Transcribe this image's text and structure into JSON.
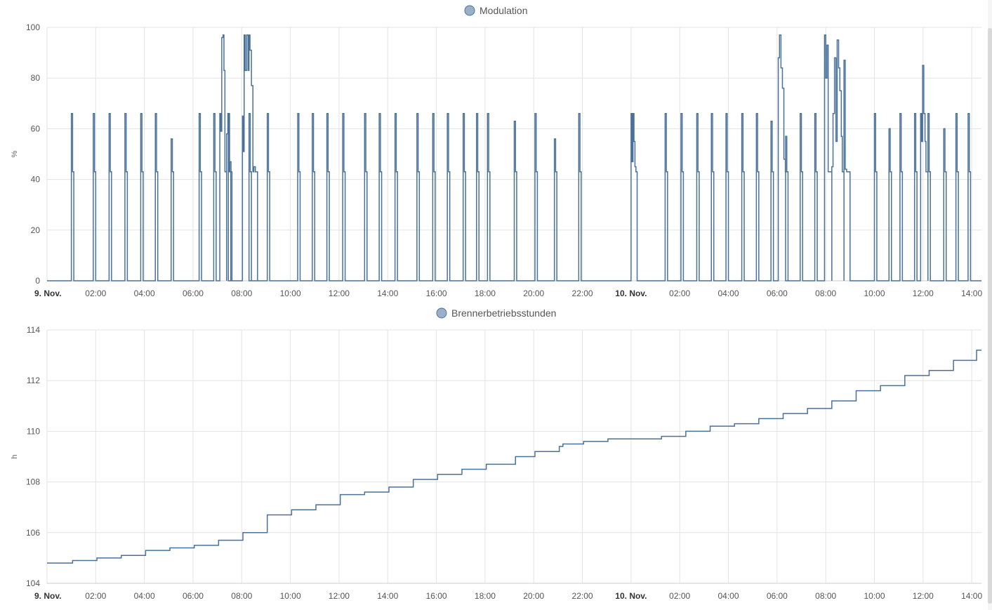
{
  "chart_data": [
    {
      "type": "line",
      "step": true,
      "legend": "Modulation",
      "legend_position": "top-center",
      "ylabel": "%",
      "ylim": [
        0,
        100
      ],
      "yticks": [
        "0",
        "20",
        "40",
        "60",
        "80",
        "100"
      ],
      "grid": true,
      "xlim_hours": [
        0,
        38.4
      ],
      "xticks": [
        {
          "h": 0,
          "label": "9. Nov.",
          "bold": true
        },
        {
          "h": 2,
          "label": "02:00"
        },
        {
          "h": 4,
          "label": "04:00"
        },
        {
          "h": 6,
          "label": "06:00"
        },
        {
          "h": 8,
          "label": "08:00"
        },
        {
          "h": 10,
          "label": "10:00"
        },
        {
          "h": 12,
          "label": "12:00"
        },
        {
          "h": 14,
          "label": "14:00"
        },
        {
          "h": 16,
          "label": "16:00"
        },
        {
          "h": 18,
          "label": "18:00"
        },
        {
          "h": 20,
          "label": "20:00"
        },
        {
          "h": 22,
          "label": "22:00"
        },
        {
          "h": 24,
          "label": "10. Nov.",
          "bold": true
        },
        {
          "h": 26,
          "label": "02:00"
        },
        {
          "h": 28,
          "label": "04:00"
        },
        {
          "h": 30,
          "label": "06:00"
        },
        {
          "h": 32,
          "label": "08:00"
        },
        {
          "h": 34,
          "label": "10:00"
        },
        {
          "h": 36,
          "label": "12:00"
        },
        {
          "h": 38,
          "label": "14:00"
        }
      ],
      "series_color": "#4a7199",
      "pulses": [
        [
          1.0,
          66,
          0.1
        ],
        [
          1.9,
          66,
          0.1
        ],
        [
          2.55,
          66,
          0.1
        ],
        [
          3.2,
          66,
          0.1
        ],
        [
          3.85,
          66,
          0.1
        ],
        [
          4.45,
          66,
          0.1
        ],
        [
          5.1,
          56,
          0.1
        ],
        [
          6.25,
          66,
          0.1
        ],
        [
          6.85,
          66,
          0.1
        ],
        [
          7.45,
          66,
          0.1
        ],
        [
          8.3,
          66,
          0.1
        ],
        [
          9.05,
          66,
          0.1
        ],
        [
          10.3,
          66,
          0.1
        ],
        [
          10.9,
          66,
          0.1
        ],
        [
          11.5,
          66,
          0.1
        ],
        [
          12.15,
          66,
          0.1
        ],
        [
          13.05,
          66,
          0.1
        ],
        [
          13.65,
          66,
          0.1
        ],
        [
          14.3,
          66,
          0.1
        ],
        [
          15.2,
          66,
          0.1
        ],
        [
          15.85,
          66,
          0.1
        ],
        [
          16.45,
          66,
          0.1
        ],
        [
          17.1,
          66,
          0.1
        ],
        [
          17.65,
          66,
          0.1
        ],
        [
          18.1,
          66,
          0.1
        ],
        [
          19.2,
          63,
          0.1
        ],
        [
          20.05,
          66,
          0.1
        ],
        [
          20.85,
          56,
          0.1
        ],
        [
          21.85,
          66,
          0.1
        ],
        [
          25.4,
          66,
          0.1
        ],
        [
          26.05,
          66,
          0.1
        ],
        [
          26.7,
          66,
          0.1
        ],
        [
          27.3,
          66,
          0.1
        ],
        [
          27.9,
          66,
          0.1
        ],
        [
          28.55,
          66,
          0.1
        ],
        [
          29.15,
          66,
          0.1
        ],
        [
          29.75,
          63,
          0.1
        ],
        [
          30.35,
          57,
          0.1
        ],
        [
          30.95,
          66,
          0.1
        ],
        [
          31.55,
          66,
          0.1
        ],
        [
          34.0,
          66,
          0.1
        ],
        [
          34.6,
          60,
          0.1
        ],
        [
          35.05,
          66,
          0.1
        ],
        [
          35.65,
          66,
          0.1
        ],
        [
          36.2,
          66,
          0.1
        ],
        [
          36.85,
          60,
          0.1
        ],
        [
          37.35,
          66,
          0.1
        ],
        [
          37.85,
          66,
          0.1
        ]
      ],
      "bursts": [
        [
          7.1,
          7.38,
          [
            [
              7.1,
              66
            ],
            [
              7.14,
              59
            ],
            [
              7.18,
              96
            ],
            [
              7.23,
              97
            ],
            [
              7.27,
              83
            ],
            [
              7.31,
              43
            ]
          ]
        ],
        [
          7.38,
          7.6,
          [
            [
              7.38,
              58
            ],
            [
              7.43,
              66
            ],
            [
              7.47,
              43
            ],
            [
              7.51,
              47
            ],
            [
              7.56,
              43
            ]
          ]
        ],
        [
          8.03,
          8.65,
          [
            [
              8.03,
              65
            ],
            [
              8.06,
              51
            ],
            [
              8.1,
              97
            ],
            [
              8.14,
              83
            ],
            [
              8.2,
              97
            ],
            [
              8.26,
              83
            ],
            [
              8.3,
              97
            ],
            [
              8.34,
              91
            ],
            [
              8.4,
              77
            ],
            [
              8.46,
              43
            ],
            [
              8.5,
              45
            ],
            [
              8.56,
              43
            ]
          ]
        ],
        [
          24.0,
          24.25,
          [
            [
              24.0,
              66
            ],
            [
              24.04,
              47
            ],
            [
              24.08,
              66
            ],
            [
              24.12,
              55
            ],
            [
              24.16,
              45
            ],
            [
              24.2,
              43
            ]
          ]
        ],
        [
          30.05,
          30.45,
          [
            [
              30.05,
              88
            ],
            [
              30.1,
              97
            ],
            [
              30.16,
              84
            ],
            [
              30.22,
              76
            ],
            [
              30.28,
              48
            ],
            [
              30.34,
              43
            ]
          ]
        ],
        [
          31.95,
          32.25,
          [
            [
              31.95,
              97
            ],
            [
              32.0,
              80
            ],
            [
              32.05,
              93
            ],
            [
              32.1,
              43
            ],
            [
              32.16,
              43
            ]
          ]
        ],
        [
          32.25,
          32.75,
          [
            [
              32.25,
              45
            ],
            [
              32.3,
              66
            ],
            [
              32.36,
              88
            ],
            [
              32.42,
              55
            ],
            [
              32.47,
              95
            ],
            [
              32.53,
              84
            ],
            [
              32.58,
              75
            ],
            [
              32.64,
              57
            ],
            [
              32.68,
              43
            ]
          ]
        ],
        [
          32.75,
          33.0,
          [
            [
              32.75,
              87
            ],
            [
              32.8,
              44
            ],
            [
              32.86,
              43
            ]
          ]
        ],
        [
          35.9,
          36.2,
          [
            [
              35.9,
              66
            ],
            [
              35.94,
              55
            ],
            [
              35.98,
              85
            ],
            [
              36.03,
              66
            ],
            [
              36.08,
              55
            ],
            [
              36.12,
              43
            ]
          ]
        ]
      ],
      "gaps": [
        [
          22.0,
          25.3
        ]
      ],
      "min_value": 0
    },
    {
      "type": "line",
      "step": true,
      "legend": "Brennerbetriebsstunden",
      "legend_position": "top-center",
      "ylabel": "h",
      "ylim": [
        104,
        114
      ],
      "yticks": [
        "104",
        "106",
        "108",
        "110",
        "112",
        "114"
      ],
      "grid": true,
      "xlim_hours": [
        0,
        38.4
      ],
      "xticks": [
        {
          "h": 0,
          "label": "9. Nov.",
          "bold": true
        },
        {
          "h": 2,
          "label": "02:00"
        },
        {
          "h": 4,
          "label": "04:00"
        },
        {
          "h": 6,
          "label": "06:00"
        },
        {
          "h": 8,
          "label": "08:00"
        },
        {
          "h": 10,
          "label": "10:00"
        },
        {
          "h": 12,
          "label": "12:00"
        },
        {
          "h": 14,
          "label": "14:00"
        },
        {
          "h": 16,
          "label": "16:00"
        },
        {
          "h": 18,
          "label": "18:00"
        },
        {
          "h": 20,
          "label": "20:00"
        },
        {
          "h": 22,
          "label": "22:00"
        },
        {
          "h": 24,
          "label": "10. Nov.",
          "bold": true
        },
        {
          "h": 26,
          "label": "02:00"
        },
        {
          "h": 28,
          "label": "04:00"
        },
        {
          "h": 30,
          "label": "06:00"
        },
        {
          "h": 32,
          "label": "08:00"
        },
        {
          "h": 34,
          "label": "10:00"
        },
        {
          "h": 36,
          "label": "12:00"
        },
        {
          "h": 38,
          "label": "14:00"
        }
      ],
      "series_color": "#4a7199",
      "steps": [
        [
          0.0,
          104.8
        ],
        [
          1.05,
          104.9
        ],
        [
          2.05,
          105.0
        ],
        [
          3.05,
          105.1
        ],
        [
          4.05,
          105.3
        ],
        [
          5.05,
          105.4
        ],
        [
          6.05,
          105.5
        ],
        [
          7.05,
          105.7
        ],
        [
          8.05,
          106.0
        ],
        [
          9.05,
          106.7
        ],
        [
          10.05,
          106.9
        ],
        [
          11.05,
          107.1
        ],
        [
          12.05,
          107.5
        ],
        [
          13.05,
          107.6
        ],
        [
          14.05,
          107.8
        ],
        [
          15.05,
          108.1
        ],
        [
          16.05,
          108.3
        ],
        [
          17.05,
          108.5
        ],
        [
          18.05,
          108.7
        ],
        [
          19.25,
          109.0
        ],
        [
          20.05,
          109.2
        ],
        [
          21.05,
          109.4
        ],
        [
          21.2,
          109.5
        ],
        [
          22.05,
          109.6
        ],
        [
          23.05,
          109.7
        ],
        [
          25.25,
          109.8
        ],
        [
          26.25,
          110.0
        ],
        [
          27.25,
          110.2
        ],
        [
          28.25,
          110.3
        ],
        [
          29.25,
          110.5
        ],
        [
          30.25,
          110.7
        ],
        [
          31.25,
          110.9
        ],
        [
          32.25,
          111.2
        ],
        [
          33.25,
          111.6
        ],
        [
          34.25,
          111.8
        ],
        [
          35.25,
          112.2
        ],
        [
          36.25,
          112.4
        ],
        [
          37.25,
          112.8
        ],
        [
          38.2,
          113.2
        ],
        [
          38.4,
          113.2
        ]
      ]
    }
  ]
}
